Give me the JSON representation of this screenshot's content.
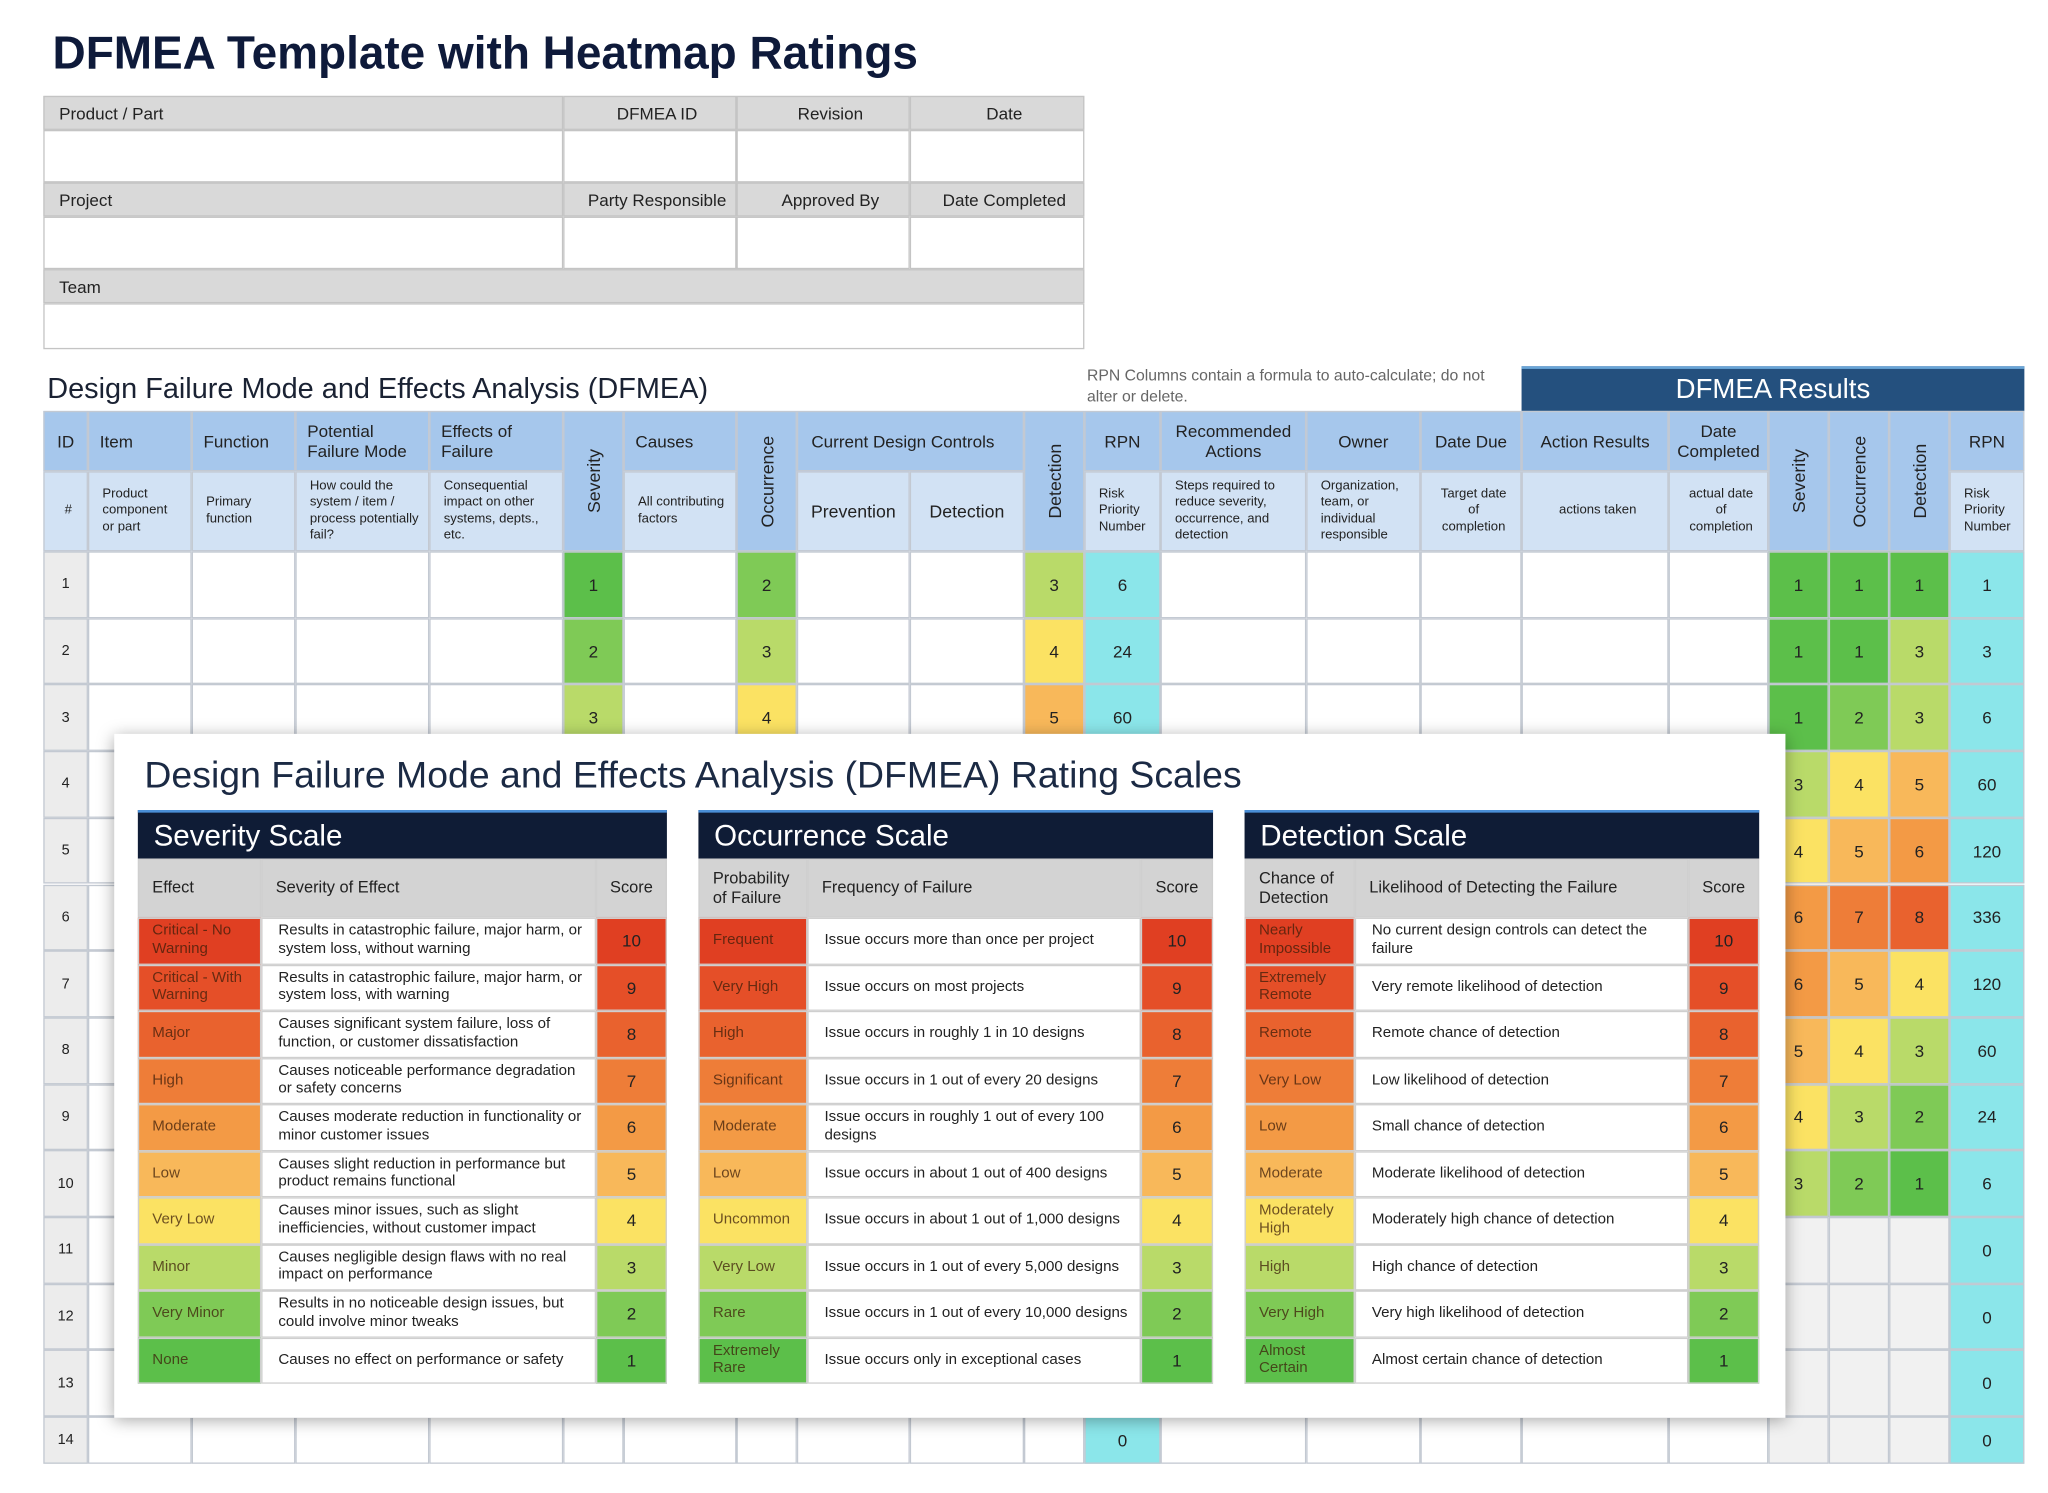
{
  "title": "DFMEA Template with Heatmap Ratings",
  "header_form": {
    "labels": [
      "Product / Part",
      "DFMEA ID",
      "Revision",
      "Date",
      "Project",
      "Party Responsible",
      "Approved By",
      "Date Completed",
      "Team"
    ]
  },
  "section_title": "Design Failure Mode and Effects Analysis (DFMEA)",
  "note": "RPN Columns contain a formula to auto-calculate; do not alter or delete.",
  "results_title": "DFMEA Results",
  "heat_colors": [
    "#5cbf4a",
    "#7fca56",
    "#b9da69",
    "#fbe263",
    "#f8b85a",
    "#f39a45",
    "#ee7d38",
    "#e9622e",
    "#e54f28",
    "#e03f22"
  ],
  "rpn_color": "#8be6ea",
  "table": {
    "group_header": "Current Design Controls",
    "columns": [
      {
        "header": "ID",
        "description": "#"
      },
      {
        "header": "Item",
        "description": "Product component or part"
      },
      {
        "header": "Function",
        "description": "Primary function"
      },
      {
        "header": "Potential Failure Mode",
        "description": "How could the system / item / process potentially fail?"
      },
      {
        "header": "Effects of Failure",
        "description": "Consequential impact on other systems, depts., etc."
      },
      {
        "header": "Severity"
      },
      {
        "header": "Causes",
        "description": "All contributing factors"
      },
      {
        "header": "Occurrence"
      },
      {
        "header": "Prevention"
      },
      {
        "header": "Detection"
      },
      {
        "header": "Detection"
      },
      {
        "header": "RPN",
        "description": "Risk Priority Number"
      },
      {
        "header": "Recommended Actions",
        "description": "Steps required to reduce severity, occurrence, and detection"
      },
      {
        "header": "Owner",
        "description": "Organization, team, or individual responsible"
      },
      {
        "header": "Date Due",
        "description": "Target date of completion"
      },
      {
        "header": "Action Results",
        "description": "actions taken"
      },
      {
        "header": "Date Completed",
        "description": "actual date of completion"
      },
      {
        "header": "Severity"
      },
      {
        "header": "Occurrence"
      },
      {
        "header": "Detection"
      },
      {
        "header": "RPN",
        "description": "Risk Priority Number"
      }
    ],
    "rows": [
      {
        "id": 1,
        "severity": 1,
        "occurrence": 2,
        "detection": 3,
        "rpn": 6,
        "new_severity": 1,
        "new_occurrence": 1,
        "new_detection": 1,
        "new_rpn": 1
      },
      {
        "id": 2,
        "severity": 2,
        "occurrence": 3,
        "detection": 4,
        "rpn": 24,
        "new_severity": 1,
        "new_occurrence": 1,
        "new_detection": 3,
        "new_rpn": 3
      },
      {
        "id": 3,
        "severity": 3,
        "occurrence": 4,
        "detection": 5,
        "rpn": 60,
        "new_severity": 1,
        "new_occurrence": 2,
        "new_detection": 3,
        "new_rpn": 6
      },
      {
        "id": 4,
        "new_severity": 3,
        "new_occurrence": 4,
        "new_detection": 5,
        "new_rpn": 60
      },
      {
        "id": 5,
        "new_severity": 4,
        "new_occurrence": 5,
        "new_detection": 6,
        "new_rpn": 120
      },
      {
        "id": 6,
        "new_severity": 6,
        "new_occurrence": 7,
        "new_detection": 8,
        "new_rpn": 336
      },
      {
        "id": 7,
        "new_severity": 6,
        "new_occurrence": 5,
        "new_detection": 4,
        "new_rpn": 120
      },
      {
        "id": 8,
        "new_severity": 5,
        "new_occurrence": 4,
        "new_detection": 3,
        "new_rpn": 60
      },
      {
        "id": 9,
        "new_severity": 4,
        "new_occurrence": 3,
        "new_detection": 2,
        "new_rpn": 24
      },
      {
        "id": 10,
        "new_severity": 3,
        "new_occurrence": 2,
        "new_detection": 1,
        "new_rpn": 6
      },
      {
        "id": 11,
        "new_rpn": 0
      },
      {
        "id": 12,
        "new_rpn": 0
      },
      {
        "id": 13,
        "new_rpn": 0
      },
      {
        "id": 14,
        "rpn": 0,
        "new_rpn": 0
      }
    ]
  },
  "rating_scales": {
    "title": "Design Failure Mode and Effects Analysis (DFMEA) Rating Scales",
    "scales": [
      {
        "title": "Severity Scale",
        "headers": [
          "Effect",
          "Severity of Effect",
          "Score"
        ],
        "rows": [
          [
            "Critical - No Warning",
            "Results in catastrophic failure, major harm, or system loss, without warning",
            10
          ],
          [
            "Critical - With Warning",
            "Results in catastrophic failure, major harm, or system loss, with warning",
            9
          ],
          [
            "Major",
            "Causes significant system failure, loss of function, or customer dissatisfaction",
            8
          ],
          [
            "High",
            "Causes noticeable performance degradation or safety concerns",
            7
          ],
          [
            "Moderate",
            "Causes moderate reduction in functionality or minor customer issues",
            6
          ],
          [
            "Low",
            "Causes slight reduction in performance but product remains functional",
            5
          ],
          [
            "Very Low",
            "Causes minor issues, such as slight inefficiencies, without customer impact",
            4
          ],
          [
            "Minor",
            "Causes negligible design flaws with no real impact on performance",
            3
          ],
          [
            "Very Minor",
            "Results in no noticeable design issues, but could involve minor tweaks",
            2
          ],
          [
            "None",
            "Causes no effect on performance or safety",
            1
          ]
        ]
      },
      {
        "title": "Occurrence Scale",
        "headers": [
          "Probability of Failure",
          "Frequency of Failure",
          "Score"
        ],
        "rows": [
          [
            "Frequent",
            "Issue occurs more than once per project",
            10
          ],
          [
            "Very High",
            "Issue occurs on most projects",
            9
          ],
          [
            "High",
            "Issue occurs in roughly 1 in 10 designs",
            8
          ],
          [
            "Significant",
            "Issue occurs in 1 out of every 20 designs",
            7
          ],
          [
            "Moderate",
            "Issue occurs in roughly 1 out of every 100 designs",
            6
          ],
          [
            "Low",
            "Issue occurs in about 1 out of 400 designs",
            5
          ],
          [
            "Uncommon",
            "Issue occurs in about 1 out of 1,000 designs",
            4
          ],
          [
            "Very Low",
            "Issue occurs in 1 out of every 5,000 designs",
            3
          ],
          [
            "Rare",
            "Issue occurs in 1 out of every 10,000 designs",
            2
          ],
          [
            "Extremely Rare",
            "Issue occurs only in exceptional cases",
            1
          ]
        ]
      },
      {
        "title": "Detection Scale",
        "headers": [
          "Chance of Detection",
          "Likelihood of Detecting the Failure",
          "Score"
        ],
        "rows": [
          [
            "Nearly Impossible",
            "No current design controls can detect the failure",
            10
          ],
          [
            "Extremely Remote",
            "Very remote likelihood of detection",
            9
          ],
          [
            "Remote",
            "Remote chance of detection",
            8
          ],
          [
            "Very Low",
            "Low likelihood of detection",
            7
          ],
          [
            "Low",
            "Small chance of detection",
            6
          ],
          [
            "Moderate",
            "Moderate likelihood of detection",
            5
          ],
          [
            "Moderately High",
            "Moderately high chance of detection",
            4
          ],
          [
            "High",
            "High chance of detection",
            3
          ],
          [
            "Very High",
            "Very high likelihood of detection",
            2
          ],
          [
            "Almost Certain",
            "Almost certain chance of detection",
            1
          ]
        ]
      }
    ]
  }
}
